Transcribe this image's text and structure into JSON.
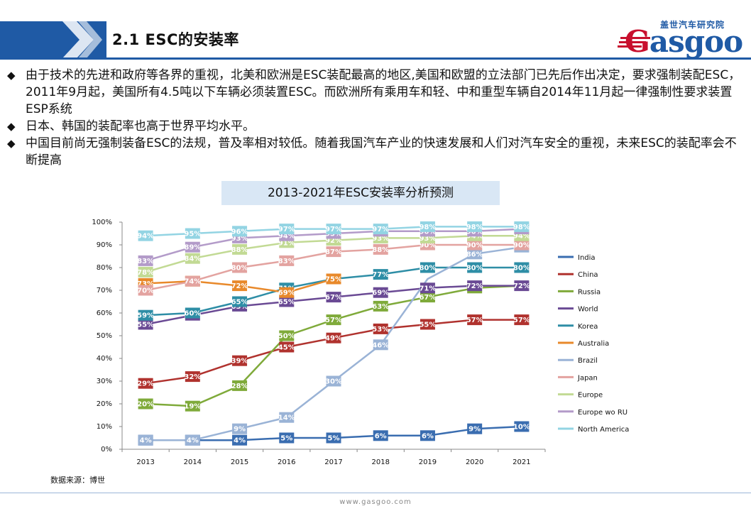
{
  "header": {
    "title": "2.1 ESC的安装率"
  },
  "logo": {
    "cn": "盖世汽车研究院",
    "word_first": "G",
    "word_rest": "asgoo"
  },
  "bullets": [
    "由于技术的先进和政府等各界的重视，北美和欧洲是ESC装配最高的地区,美国和欧盟的立法部门已先后作出决定，要求强制装配ESC，2011年9月起，美国所有4.5吨以下车辆必须装置ESC。而欧洲所有乘用车和轻、中和重型车辆自2014年11月起一律强制性要求装置ESP系统",
    "日本、韩国的装配率也高于世界平均水平。",
    "中国目前尚无强制装备ESC的法规，普及率相对较低。随着我国汽车产业的快速发展和人们对汽车安全的重视，未来ESC的装配率会不断提高"
  ],
  "source": "数据来源：博世",
  "footer": "www.gasgoo.com",
  "chart_data": {
    "type": "line",
    "title": "2013-2021年ESC安装率分析预测",
    "x": [
      "2013",
      "2014",
      "2015",
      "2016",
      "2017",
      "2018",
      "2019",
      "2020",
      "2021"
    ],
    "ylim": [
      0,
      100
    ],
    "yticks": [
      "0%",
      "10%",
      "20%",
      "30%",
      "40%",
      "50%",
      "60%",
      "70%",
      "80%",
      "90%",
      "100%"
    ],
    "legend_position": "right",
    "series": [
      {
        "name": "India",
        "color": "#3a6db0",
        "values": [
          4,
          4,
          4,
          5,
          5,
          6,
          6,
          9,
          10
        ],
        "labels": [
          "4%",
          "4%",
          "4%",
          "5%",
          "5%",
          "6%",
          "6%",
          "9%",
          "10%"
        ]
      },
      {
        "name": "China",
        "color": "#b0322e",
        "values": [
          29,
          32,
          39,
          45,
          49,
          53,
          55,
          57,
          57
        ],
        "labels": [
          "29%",
          "32%",
          "39%",
          "45%",
          "49%",
          "53%",
          "55%",
          "57%",
          "57%"
        ]
      },
      {
        "name": "Russia",
        "color": "#7faa3a",
        "values": [
          20,
          19,
          28,
          50,
          57,
          63,
          67,
          71,
          72
        ],
        "labels": [
          "20%",
          "19%",
          "28%",
          "50%",
          "57%",
          "63%",
          "67%",
          "71%",
          ""
        ]
      },
      {
        "name": "World",
        "color": "#6a4a94",
        "values": [
          55,
          59,
          63,
          65,
          67,
          69,
          71,
          72,
          72
        ],
        "labels": [
          "55%",
          "59%",
          "63%",
          "65%",
          "67%",
          "69%",
          "71%",
          "72%",
          "72%"
        ]
      },
      {
        "name": "Korea",
        "color": "#2e8ea6",
        "values": [
          59,
          60,
          65,
          71,
          75,
          77,
          80,
          80,
          80
        ],
        "labels": [
          "59%",
          "60%",
          "65%",
          "71%",
          "75%",
          "77%",
          "80%",
          "80%",
          "80%"
        ]
      },
      {
        "name": "Australia",
        "color": "#e8892b",
        "values": [
          73,
          74,
          72,
          69,
          75,
          null,
          null,
          null,
          null
        ],
        "labels": [
          "73%",
          "74%",
          "72%",
          "69%",
          "75%",
          "",
          "",
          "",
          ""
        ]
      },
      {
        "name": "Brazil",
        "color": "#9ab3d6",
        "values": [
          4,
          4,
          9,
          14,
          30,
          46,
          75,
          86,
          89
        ],
        "labels": [
          "4%",
          "4%",
          "9%",
          "14%",
          "30%",
          "46%",
          "",
          "86%",
          "89%"
        ]
      },
      {
        "name": "Japan",
        "color": "#e3a3a0",
        "values": [
          70,
          74,
          80,
          83,
          87,
          88,
          90,
          90,
          90
        ],
        "labels": [
          "70%",
          "74%",
          "80%",
          "83%",
          "87%",
          "88%",
          "90%",
          "90%",
          "90%"
        ]
      },
      {
        "name": "Europe",
        "color": "#c2da94",
        "values": [
          78,
          84,
          88,
          91,
          92,
          93,
          93,
          94,
          94
        ],
        "labels": [
          "78%",
          "84%",
          "88%",
          "91%",
          "92%",
          "93%",
          "93%",
          "94%",
          "94%"
        ]
      },
      {
        "name": "Europe wo RU",
        "color": "#b39bc9",
        "values": [
          83,
          89,
          93,
          94,
          95,
          96,
          96,
          96,
          97
        ],
        "labels": [
          "83%",
          "89%",
          "93%",
          "94%",
          "95%",
          "96%",
          "96%",
          "96%",
          "97%"
        ]
      },
      {
        "name": "North America",
        "color": "#93d4e3",
        "values": [
          94,
          95,
          96,
          97,
          97,
          97,
          98,
          98,
          98
        ],
        "labels": [
          "94%",
          "95%",
          "96%",
          "97%",
          "97%",
          "97%",
          "98%",
          "98%",
          "98%"
        ]
      }
    ]
  }
}
